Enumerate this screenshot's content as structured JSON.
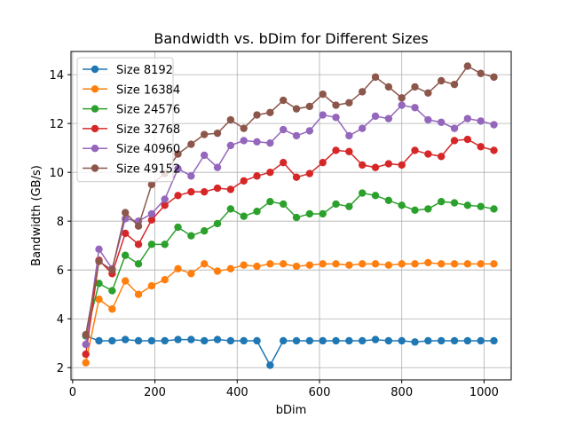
{
  "chart_data": {
    "type": "line",
    "title": "Bandwidth vs. bDim for Different Sizes",
    "xlabel": "bDim",
    "ylabel": "Bandwidth (GB/s)",
    "xlim": [
      -4,
      1066
    ],
    "ylim": [
      1.5,
      14.95
    ],
    "xticks": [
      0,
      200,
      400,
      600,
      800,
      1000
    ],
    "yticks": [
      2,
      4,
      6,
      8,
      10,
      12,
      14
    ],
    "grid": true,
    "legend_position": "top-left",
    "x": [
      32,
      64,
      96,
      128,
      160,
      192,
      224,
      256,
      288,
      320,
      352,
      384,
      416,
      448,
      480,
      512,
      544,
      576,
      608,
      640,
      672,
      704,
      736,
      768,
      800,
      832,
      864,
      896,
      928,
      960,
      992,
      1024
    ],
    "series": [
      {
        "name": "Size 8192",
        "color": "#1f77b4",
        "values": [
          3.3,
          3.1,
          3.1,
          3.15,
          3.1,
          3.1,
          3.1,
          3.15,
          3.15,
          3.1,
          3.15,
          3.1,
          3.1,
          3.1,
          2.1,
          3.1,
          3.1,
          3.1,
          3.1,
          3.1,
          3.1,
          3.1,
          3.15,
          3.1,
          3.1,
          3.05,
          3.1,
          3.1,
          3.1,
          3.1,
          3.1,
          3.1
        ]
      },
      {
        "name": "Size 16384",
        "color": "#ff7f0e",
        "values": [
          2.2,
          4.8,
          4.4,
          5.55,
          5.0,
          5.35,
          5.6,
          6.05,
          5.85,
          6.25,
          5.95,
          6.05,
          6.2,
          6.15,
          6.25,
          6.25,
          6.15,
          6.2,
          6.25,
          6.25,
          6.2,
          6.25,
          6.25,
          6.2,
          6.25,
          6.25,
          6.3,
          6.25,
          6.25,
          6.25,
          6.25,
          6.25
        ]
      },
      {
        "name": "Size 24576",
        "color": "#2ca02c",
        "values": [
          3.3,
          5.45,
          5.15,
          6.6,
          6.25,
          7.05,
          7.05,
          7.75,
          7.4,
          7.6,
          7.9,
          8.5,
          8.2,
          8.4,
          8.8,
          8.7,
          8.15,
          8.3,
          8.3,
          8.7,
          8.6,
          9.15,
          9.05,
          8.85,
          8.65,
          8.45,
          8.5,
          8.8,
          8.75,
          8.65,
          8.6,
          8.5
        ]
      },
      {
        "name": "Size 32768",
        "color": "#d62728",
        "values": [
          2.55,
          6.4,
          5.85,
          7.5,
          7.05,
          8.05,
          8.65,
          9.05,
          9.2,
          9.2,
          9.35,
          9.3,
          9.65,
          9.85,
          10.0,
          10.4,
          9.8,
          9.95,
          10.4,
          10.9,
          10.85,
          10.3,
          10.2,
          10.35,
          10.3,
          10.9,
          10.75,
          10.65,
          11.3,
          11.35,
          11.05,
          10.9
        ]
      },
      {
        "name": "Size 40960",
        "color": "#9467bd",
        "values": [
          2.95,
          6.85,
          6.05,
          8.1,
          8.0,
          8.3,
          8.9,
          10.15,
          9.85,
          10.7,
          10.2,
          11.1,
          11.3,
          11.25,
          11.2,
          11.75,
          11.5,
          11.7,
          12.35,
          12.25,
          11.5,
          11.8,
          12.3,
          12.2,
          12.75,
          12.65,
          12.15,
          12.05,
          11.8,
          12.2,
          12.1,
          11.95
        ]
      },
      {
        "name": "Size 49152",
        "color": "#8c564b",
        "values": [
          3.35,
          6.35,
          6.0,
          8.35,
          7.8,
          9.5,
          9.95,
          10.75,
          11.15,
          11.55,
          11.6,
          12.15,
          11.8,
          12.35,
          12.45,
          12.95,
          12.6,
          12.7,
          13.2,
          12.75,
          12.85,
          13.3,
          13.9,
          13.5,
          13.05,
          13.5,
          13.25,
          13.75,
          13.6,
          14.35,
          14.05,
          13.9
        ]
      }
    ]
  }
}
